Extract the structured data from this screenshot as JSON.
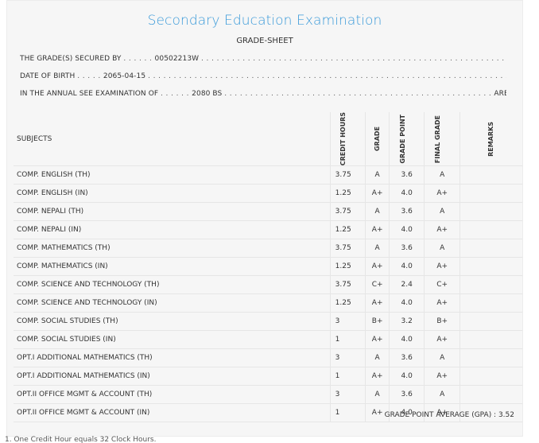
{
  "title": "Secondary Education Examination",
  "subtitle": "GRADE-SHEET",
  "info": {
    "secured_label": "THE GRADE(S) SECURED BY",
    "symbol_no": "00502213W",
    "dob_label": "DATE OF BIRTH",
    "dob": "2065-04-15",
    "exam_label": "IN THE ANNUAL SEE EXAMINATION OF",
    "exam_year": "2080 BS",
    "exam_end": "ARE GIVEN BELOW"
  },
  "table": {
    "headers": {
      "subjects": "SUBJECTS",
      "credit_hours": "CREDIT HOURS",
      "grade": "GRADE",
      "grade_point": "GRADE POINT",
      "final_grade": "FINAL GRADE",
      "remarks": "REMARKS"
    },
    "rows": [
      {
        "subject": "COMP. ENGLISH (TH)",
        "credit": "3.75",
        "grade": "A",
        "point": "3.6",
        "final": "A"
      },
      {
        "subject": "COMP. ENGLISH (IN)",
        "credit": "1.25",
        "grade": "A+",
        "point": "4.0",
        "final": "A+"
      },
      {
        "subject": "COMP. NEPALI (TH)",
        "credit": "3.75",
        "grade": "A",
        "point": "3.6",
        "final": "A"
      },
      {
        "subject": "COMP. NEPALI (IN)",
        "credit": "1.25",
        "grade": "A+",
        "point": "4.0",
        "final": "A+"
      },
      {
        "subject": "COMP. MATHEMATICS (TH)",
        "credit": "3.75",
        "grade": "A",
        "point": "3.6",
        "final": "A"
      },
      {
        "subject": "COMP. MATHEMATICS (IN)",
        "credit": "1.25",
        "grade": "A+",
        "point": "4.0",
        "final": "A+"
      },
      {
        "subject": "COMP. SCIENCE AND TECHNOLOGY (TH)",
        "credit": "3.75",
        "grade": "C+",
        "point": "2.4",
        "final": "C+"
      },
      {
        "subject": "COMP. SCIENCE AND TECHNOLOGY (IN)",
        "credit": "1.25",
        "grade": "A+",
        "point": "4.0",
        "final": "A+"
      },
      {
        "subject": "COMP. SOCIAL STUDIES (TH)",
        "credit": "3",
        "grade": "B+",
        "point": "3.2",
        "final": "B+"
      },
      {
        "subject": "COMP. SOCIAL STUDIES (IN)",
        "credit": "1",
        "grade": "A+",
        "point": "4.0",
        "final": "A+"
      },
      {
        "subject": "OPT.I ADDITIONAL MATHEMATICS (TH)",
        "credit": "3",
        "grade": "A",
        "point": "3.6",
        "final": "A"
      },
      {
        "subject": "OPT.I ADDITIONAL MATHEMATICS (IN)",
        "credit": "1",
        "grade": "A+",
        "point": "4.0",
        "final": "A+"
      },
      {
        "subject": "OPT.II OFFICE MGMT & ACCOUNT (TH)",
        "credit": "3",
        "grade": "A",
        "point": "3.6",
        "final": "A"
      },
      {
        "subject": "OPT.II OFFICE MGMT & ACCOUNT (IN)",
        "credit": "1",
        "grade": "A+",
        "point": "4.0",
        "final": "A+"
      }
    ]
  },
  "gpa": "GRADE POINT AVERAGE (GPA) : 3.52",
  "footnote": "1. One Credit Hour equals 32 Clock Hours."
}
